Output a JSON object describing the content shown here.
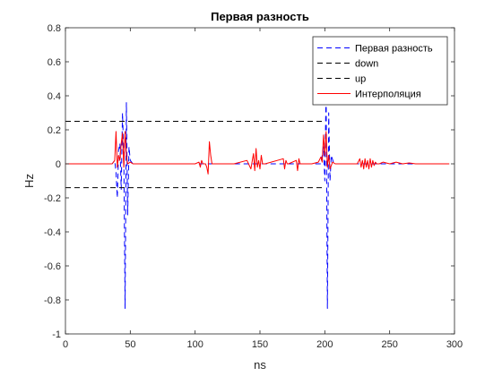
{
  "chart_data": {
    "type": "line",
    "title": "Первая разность",
    "xlabel": "ns",
    "ylabel": "Hz",
    "xlim": [
      0,
      300
    ],
    "ylim": [
      -1,
      0.8
    ],
    "xticks": [
      0,
      50,
      100,
      150,
      200,
      250,
      300
    ],
    "yticks": [
      -1,
      -0.8,
      -0.6,
      -0.4,
      -0.2,
      0,
      0.2,
      0.4,
      0.6,
      0.8
    ],
    "xtick_labels": [
      "0",
      "50",
      "100",
      "150",
      "200",
      "250",
      "300"
    ],
    "ytick_labels": [
      "-1",
      "-0.8",
      "-0.6",
      "-0.4",
      "-0.2",
      "0",
      "0.2",
      "0.4",
      "0.6",
      "0.8"
    ],
    "grid": false,
    "legend_position": "top-right",
    "series": [
      {
        "name": "Первая разность",
        "style": "dashed",
        "color": "#0000ff",
        "x": [
          0,
          36,
          38,
          39,
          40,
          41,
          42,
          43,
          44,
          45,
          46,
          47,
          48,
          49,
          50,
          52,
          197,
          198,
          199,
          200,
          201,
          202,
          203,
          204,
          205,
          207,
          296
        ],
        "y": [
          0,
          0,
          0.02,
          -0.05,
          -0.2,
          0.08,
          0.12,
          -0.15,
          0.3,
          0.05,
          -0.85,
          0.36,
          -0.3,
          0.1,
          0.02,
          0,
          0,
          0.05,
          0.1,
          -0.1,
          0.45,
          -0.85,
          0.3,
          -0.1,
          0.05,
          0,
          0
        ]
      },
      {
        "name": "down",
        "style": "dashed",
        "color": "#000000",
        "x": [
          0,
          200
        ],
        "y": [
          -0.14,
          -0.14
        ]
      },
      {
        "name": "up",
        "style": "dashed",
        "color": "#000000",
        "x": [
          0,
          200
        ],
        "y": [
          0.25,
          0.25
        ]
      },
      {
        "name": "Интерполяция",
        "style": "solid",
        "color": "#ff0000",
        "x": [
          0,
          30,
          36,
          38,
          39,
          40,
          41,
          42,
          43,
          44,
          45,
          46,
          47,
          48,
          50,
          52,
          100,
          103,
          104,
          105,
          106,
          108,
          109,
          110,
          111,
          112,
          113,
          115,
          130,
          140,
          143,
          145,
          146,
          147,
          148,
          149,
          150,
          151,
          152,
          154,
          168,
          169,
          170,
          171,
          172,
          178,
          179,
          180,
          181,
          182,
          190,
          195,
          197,
          198,
          199,
          200,
          201,
          202,
          203,
          204,
          206,
          208,
          225,
          227,
          228,
          229,
          230,
          231,
          232,
          233,
          234,
          235,
          236,
          237,
          238,
          239,
          240,
          242,
          245,
          250,
          255,
          260,
          265,
          270,
          280,
          296
        ],
        "y": [
          0,
          0,
          0,
          0.02,
          0.19,
          -0.02,
          0.05,
          0.02,
          0.12,
          0.18,
          -0.02,
          0.19,
          0.05,
          0,
          0.01,
          0,
          0,
          0.01,
          -0.02,
          0.02,
          0,
          0,
          -0.02,
          -0.06,
          0.13,
          0.05,
          0,
          0,
          0,
          0.02,
          -0.03,
          0.06,
          -0.04,
          0.09,
          -0.02,
          0.02,
          -0.03,
          0.05,
          0,
          0,
          0.03,
          -0.03,
          0.02,
          0,
          0,
          0.02,
          -0.04,
          0.03,
          0,
          0,
          0,
          0.01,
          0.04,
          0.01,
          0.17,
          0.05,
          0.19,
          -0.02,
          0.05,
          -0.03,
          0.01,
          0,
          0,
          0.03,
          -0.02,
          0.02,
          -0.03,
          0.03,
          -0.02,
          0.02,
          -0.03,
          0.03,
          -0.02,
          0.02,
          -0.01,
          0.01,
          0,
          0,
          0.01,
          0,
          0.01,
          0,
          0.005,
          0,
          0,
          0
        ]
      }
    ]
  }
}
